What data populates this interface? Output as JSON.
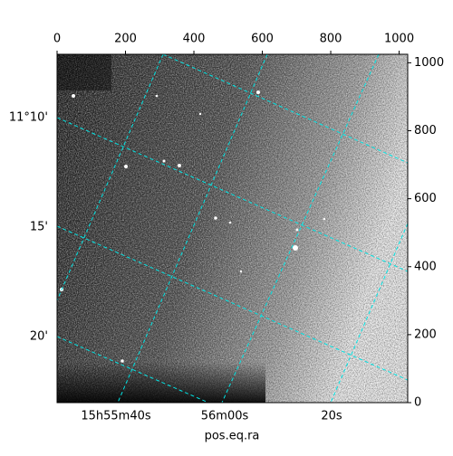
{
  "chart_data": {
    "type": "image",
    "xlabel": "pos.eq.ra",
    "xlim": [
      0,
      1025
    ],
    "xticks": [
      0,
      200,
      400,
      600,
      800,
      1000
    ],
    "ylim": [
      0,
      1025
    ],
    "yticks": [
      0,
      200,
      400,
      600,
      800,
      1000
    ],
    "ra_labels": [
      "15h55m40s",
      "56m00s",
      "20s"
    ],
    "dec_labels": [
      "11°10'",
      "15'",
      "20'"
    ],
    "grid_color": "#00e5e5"
  }
}
